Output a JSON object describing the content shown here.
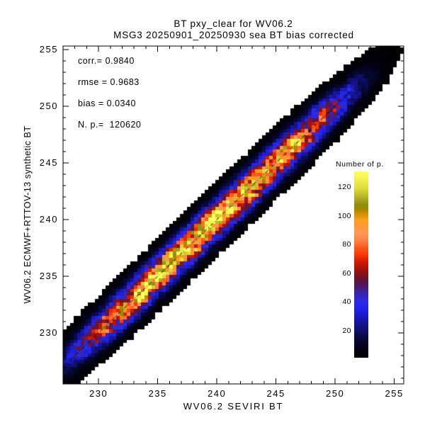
{
  "window": {
    "background": "#ffffff",
    "text_color": "#000000"
  },
  "chart_data": {
    "type": "heatmap",
    "title": "BT pxy_clear for WV06.2",
    "subtitle": "MSG3 20250901_20250930 sea BT bias corrected",
    "description": "2D histogram density scatter of observed vs synthetic brightness temperature for clear-sky sea pixels; density concentrated along 1:1 diagonal",
    "stats": {
      "corr": 0.984,
      "rmse": 0.9683,
      "bias": 0.034,
      "n_points": 120620
    },
    "stats_labels": {
      "corr": "corr.= 0.9840",
      "rmse": "rmse = 0.9683",
      "bias": "bias = 0.0340",
      "npoints": "N. p.=  120620"
    },
    "axes": {
      "x": {
        "label": "WV06.2 SEVIRI BT",
        "range": [
          227.0,
          255.8
        ],
        "major_ticks": [
          230,
          235,
          240,
          245,
          250,
          255
        ],
        "minor_step": 1
      },
      "y": {
        "label": "WV06.2 ECMWF+RTTOV-13 synthetic BT",
        "range": [
          225.5,
          255.3
        ],
        "major_ticks": [
          230,
          235,
          240,
          245,
          250,
          255
        ],
        "minor_step": 1
      }
    },
    "identity_line": {
      "style": "dash-dot",
      "color": "#000000",
      "from": 227.0,
      "to": 255.3
    },
    "colorbar": {
      "title": "Number of p.",
      "range": [
        1,
        131
      ],
      "ticks": [
        20,
        40,
        60,
        80,
        100,
        120
      ],
      "stops": [
        [
          0.0,
          "#000002"
        ],
        [
          0.054,
          "#030318"
        ],
        [
          0.108,
          "#090940"
        ],
        [
          0.154,
          "#101078"
        ],
        [
          0.208,
          "#1717b2"
        ],
        [
          0.262,
          "#2222e8"
        ],
        [
          0.3,
          "#2c2ce6"
        ],
        [
          0.331,
          "#3526c0"
        ],
        [
          0.362,
          "#421f8a"
        ],
        [
          0.392,
          "#4f1658"
        ],
        [
          0.423,
          "#671430"
        ],
        [
          0.454,
          "#8c1216"
        ],
        [
          0.485,
          "#b2120a"
        ],
        [
          0.515,
          "#d31a04"
        ],
        [
          0.554,
          "#f93a08"
        ],
        [
          0.592,
          "#fb5a1e"
        ],
        [
          0.631,
          "#ff8448"
        ],
        [
          0.669,
          "#ff9858"
        ],
        [
          0.708,
          "#ff9838"
        ],
        [
          0.738,
          "#fe9f1e"
        ],
        [
          0.769,
          "#d89104"
        ],
        [
          0.8,
          "#a08800"
        ],
        [
          0.823,
          "#8f8f10"
        ],
        [
          0.862,
          "#b3b328"
        ],
        [
          0.915,
          "#e0e040"
        ],
        [
          1.0,
          "#ffff60"
        ]
      ]
    },
    "density_model": {
      "diagonal_center": 239.4,
      "diagonal_width": 10.9,
      "diagonal_power": 4,
      "perp_sigma": 0.78,
      "peak_count": 118,
      "bin_size": 0.3,
      "min_count": 1
    }
  }
}
